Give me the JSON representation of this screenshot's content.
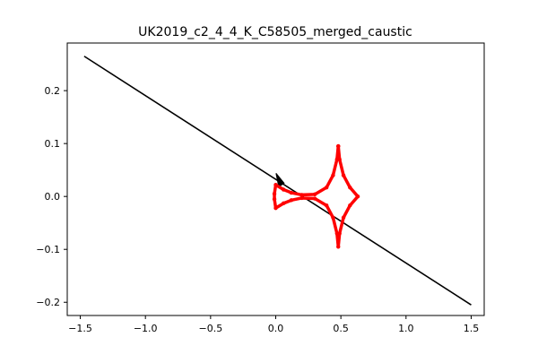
{
  "chart_data": {
    "type": "line",
    "title": "UK2019_c2_4_4_K_C58505_merged_caustic",
    "xlabel": "",
    "ylabel": "",
    "xlim": [
      -1.6,
      1.6
    ],
    "ylim": [
      -0.225,
      0.29
    ],
    "grid": false,
    "x_ticks": [
      -1.5,
      -1.0,
      -0.5,
      0.0,
      0.5,
      1.0,
      1.5
    ],
    "x_tick_labels": [
      "−1.5",
      "−1.0",
      "−0.5",
      "0.0",
      "0.5",
      "1.0",
      "1.5"
    ],
    "y_ticks": [
      -0.2,
      -0.1,
      0.0,
      0.1,
      0.2
    ],
    "y_tick_labels": [
      "−0.2",
      "−0.1",
      "0.0",
      "0.1",
      "0.2"
    ],
    "series": [
      {
        "kind": "trajectory",
        "color": "#000000",
        "points": [
          [
            -1.47,
            0.265
          ],
          [
            1.5,
            -0.205
          ]
        ],
        "arrow": {
          "at": [
            0.03,
            0.02
          ],
          "direction": "toward-upper-left",
          "color": "#000000"
        }
      },
      {
        "kind": "caustic",
        "color": "#ff0000",
        "points": [
          [
            0.48,
            0.095
          ],
          [
            0.47,
            0.07
          ],
          [
            0.44,
            0.04
          ],
          [
            0.39,
            0.017
          ],
          [
            0.3,
            0.004
          ],
          [
            0.2,
            0.003
          ],
          [
            0.12,
            0.007
          ],
          [
            0.06,
            0.013
          ],
          [
            0.0,
            0.022
          ],
          [
            -0.01,
            0.005
          ],
          [
            -0.01,
            -0.005
          ],
          [
            0.0,
            -0.022
          ],
          [
            0.06,
            -0.013
          ],
          [
            0.12,
            -0.007
          ],
          [
            0.2,
            -0.003
          ],
          [
            0.3,
            -0.004
          ],
          [
            0.39,
            -0.017
          ],
          [
            0.44,
            -0.04
          ],
          [
            0.47,
            -0.07
          ],
          [
            0.48,
            -0.095
          ],
          [
            0.49,
            -0.07
          ],
          [
            0.52,
            -0.04
          ],
          [
            0.57,
            -0.017
          ],
          [
            0.63,
            0.0
          ],
          [
            0.57,
            0.017
          ],
          [
            0.52,
            0.04
          ],
          [
            0.49,
            0.07
          ],
          [
            0.48,
            0.095
          ]
        ]
      }
    ]
  }
}
